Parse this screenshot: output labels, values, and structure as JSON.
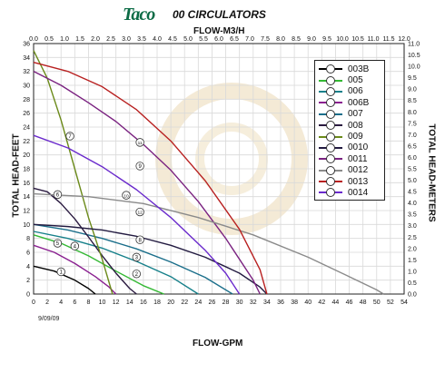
{
  "header": {
    "logo_text": "Taco",
    "title": "00 CIRCULATORS"
  },
  "footer": {
    "date": "9/09/09"
  },
  "chart_data": {
    "type": "line",
    "top_axis": {
      "label": "FLOW-M3/H",
      "range": [
        0,
        12.0
      ],
      "ticks": [
        "0.0",
        "0.5",
        "1.0",
        "1.5",
        "2.0",
        "2.5",
        "3.0",
        "3.5",
        "4.0",
        "4.5",
        "5.0",
        "5.5",
        "6.0",
        "6.5",
        "7.0",
        "7.5",
        "8.0",
        "8.5",
        "9.0",
        "9.5",
        "10.0",
        "10.5",
        "11.0",
        "11.5",
        "12.0"
      ]
    },
    "bottom_axis": {
      "label": "FLOW-GPM",
      "range": [
        0,
        54
      ],
      "ticks": [
        "0",
        "2",
        "4",
        "6",
        "8",
        "10",
        "12",
        "14",
        "16",
        "18",
        "20",
        "22",
        "24",
        "26",
        "28",
        "30",
        "32",
        "34",
        "36",
        "38",
        "40",
        "42",
        "44",
        "46",
        "48",
        "50",
        "52",
        "54"
      ]
    },
    "left_axis": {
      "label": "TOTAL HEAD-FEET",
      "range": [
        0,
        36
      ],
      "ticks": [
        "0",
        "2",
        "4",
        "6",
        "8",
        "10",
        "12",
        "14",
        "16",
        "18",
        "20",
        "22",
        "24",
        "26",
        "28",
        "30",
        "32",
        "34",
        "36"
      ]
    },
    "right_axis": {
      "label": "TOTAL HEAD-METERS",
      "range": [
        0,
        11.0
      ],
      "ticks": [
        "0.0",
        "0.5",
        "1.0",
        "1.5",
        "2.0",
        "2.5",
        "3.0",
        "3.5",
        "4.0",
        "4.5",
        "5.0",
        "5.5",
        "6.0",
        "6.5",
        "7.0",
        "7.5",
        "8.0",
        "8.5",
        "9.0",
        "9.5",
        "10.0",
        "10.5",
        "11.0"
      ]
    },
    "grid": true,
    "legend_position": "top-right",
    "series": [
      {
        "badge": "1",
        "name": "003B",
        "color": "#000000",
        "points": [
          [
            0,
            4
          ],
          [
            3,
            3.3
          ],
          [
            6,
            2
          ],
          [
            8,
            0.8
          ],
          [
            9,
            0
          ]
        ]
      },
      {
        "badge": "2",
        "name": "005",
        "color": "#33b833",
        "points": [
          [
            0,
            8.5
          ],
          [
            4,
            7.3
          ],
          [
            8,
            5.5
          ],
          [
            12,
            3.3
          ],
          [
            16,
            1.2
          ],
          [
            19,
            0
          ]
        ]
      },
      {
        "badge": "3",
        "name": "006",
        "color": "#16808a",
        "points": [
          [
            0,
            9
          ],
          [
            5,
            8
          ],
          [
            10,
            6.6
          ],
          [
            15,
            4.7
          ],
          [
            20,
            2.5
          ],
          [
            24,
            0
          ]
        ]
      },
      {
        "badge": "4",
        "name": "006B",
        "color": "#8a2090",
        "points": [
          [
            0,
            7
          ],
          [
            3,
            6
          ],
          [
            6,
            4.4
          ],
          [
            9,
            2.5
          ],
          [
            11,
            1
          ],
          [
            12,
            0
          ]
        ]
      },
      {
        "badge": "5",
        "name": "007",
        "color": "#1a6e8a",
        "points": [
          [
            0,
            10
          ],
          [
            5,
            9.2
          ],
          [
            10,
            8
          ],
          [
            15,
            6.5
          ],
          [
            20,
            4.6
          ],
          [
            25,
            2.4
          ],
          [
            29,
            0
          ]
        ]
      },
      {
        "badge": "6",
        "name": "008",
        "color": "#2a1a40",
        "points": [
          [
            0,
            15.2
          ],
          [
            2,
            14.7
          ],
          [
            4,
            13
          ],
          [
            6,
            10.8
          ],
          [
            8,
            8.2
          ],
          [
            10,
            5.5
          ],
          [
            12,
            3
          ],
          [
            14,
            0.8
          ],
          [
            15,
            0
          ]
        ]
      },
      {
        "badge": "7",
        "name": "009",
        "color": "#6b8a1a",
        "points": [
          [
            0,
            35
          ],
          [
            2,
            31
          ],
          [
            4,
            25
          ],
          [
            6,
            18
          ],
          [
            8,
            11
          ],
          [
            10,
            5
          ],
          [
            11.5,
            0
          ]
        ]
      },
      {
        "badge": "8",
        "name": "0010",
        "color": "#221a40",
        "points": [
          [
            0,
            10
          ],
          [
            5,
            9.7
          ],
          [
            10,
            9.2
          ],
          [
            15,
            8.3
          ],
          [
            20,
            7
          ],
          [
            25,
            5.3
          ],
          [
            30,
            3
          ],
          [
            33,
            1
          ],
          [
            34,
            0
          ]
        ]
      },
      {
        "badge": "9",
        "name": "0011",
        "color": "#7a2280",
        "points": [
          [
            0,
            32
          ],
          [
            4,
            30
          ],
          [
            8,
            27.5
          ],
          [
            12,
            24.8
          ],
          [
            16,
            21.5
          ],
          [
            20,
            17.8
          ],
          [
            24,
            13.3
          ],
          [
            28,
            8
          ],
          [
            32,
            2
          ],
          [
            33,
            0
          ]
        ]
      },
      {
        "badge": "10",
        "name": "0012",
        "color": "#8a8a8a",
        "points": [
          [
            0,
            14.4
          ],
          [
            8,
            14
          ],
          [
            16,
            13
          ],
          [
            24,
            11
          ],
          [
            32,
            8.5
          ],
          [
            40,
            5.3
          ],
          [
            46,
            2.5
          ],
          [
            50,
            0.6
          ],
          [
            51,
            0
          ]
        ]
      },
      {
        "badge": "11",
        "name": "0013",
        "color": "#b82020",
        "points": [
          [
            0,
            33.3
          ],
          [
            5,
            32
          ],
          [
            10,
            29.8
          ],
          [
            15,
            26.5
          ],
          [
            20,
            22
          ],
          [
            25,
            16.3
          ],
          [
            30,
            9.3
          ],
          [
            33,
            3.5
          ],
          [
            34,
            0
          ]
        ]
      },
      {
        "badge": "12",
        "name": "0014",
        "color": "#6a2acc",
        "points": [
          [
            0,
            22.8
          ],
          [
            5,
            21
          ],
          [
            10,
            18.3
          ],
          [
            15,
            15
          ],
          [
            20,
            11
          ],
          [
            25,
            6.3
          ],
          [
            28,
            3
          ],
          [
            30,
            0
          ]
        ]
      }
    ],
    "curve_labels": [
      {
        "badge": "1",
        "x": 4,
        "y": 3.2
      },
      {
        "badge": "2",
        "x": 15,
        "y": 2.9
      },
      {
        "badge": "3",
        "x": 15,
        "y": 5.3
      },
      {
        "badge": "4",
        "x": 6,
        "y": 6.9
      },
      {
        "badge": "5",
        "x": 3.5,
        "y": 7.3
      },
      {
        "badge": "6",
        "x": 3.5,
        "y": 14.3
      },
      {
        "badge": "7",
        "x": 5.3,
        "y": 22.7
      },
      {
        "badge": "8",
        "x": 15.5,
        "y": 7.8
      },
      {
        "badge": "9",
        "x": 15.5,
        "y": 18.4
      },
      {
        "badge": "10",
        "x": 13.5,
        "y": 14.2
      },
      {
        "badge": "11",
        "x": 15.5,
        "y": 21.8
      },
      {
        "badge": "12",
        "x": 15.5,
        "y": 11.8
      }
    ]
  }
}
